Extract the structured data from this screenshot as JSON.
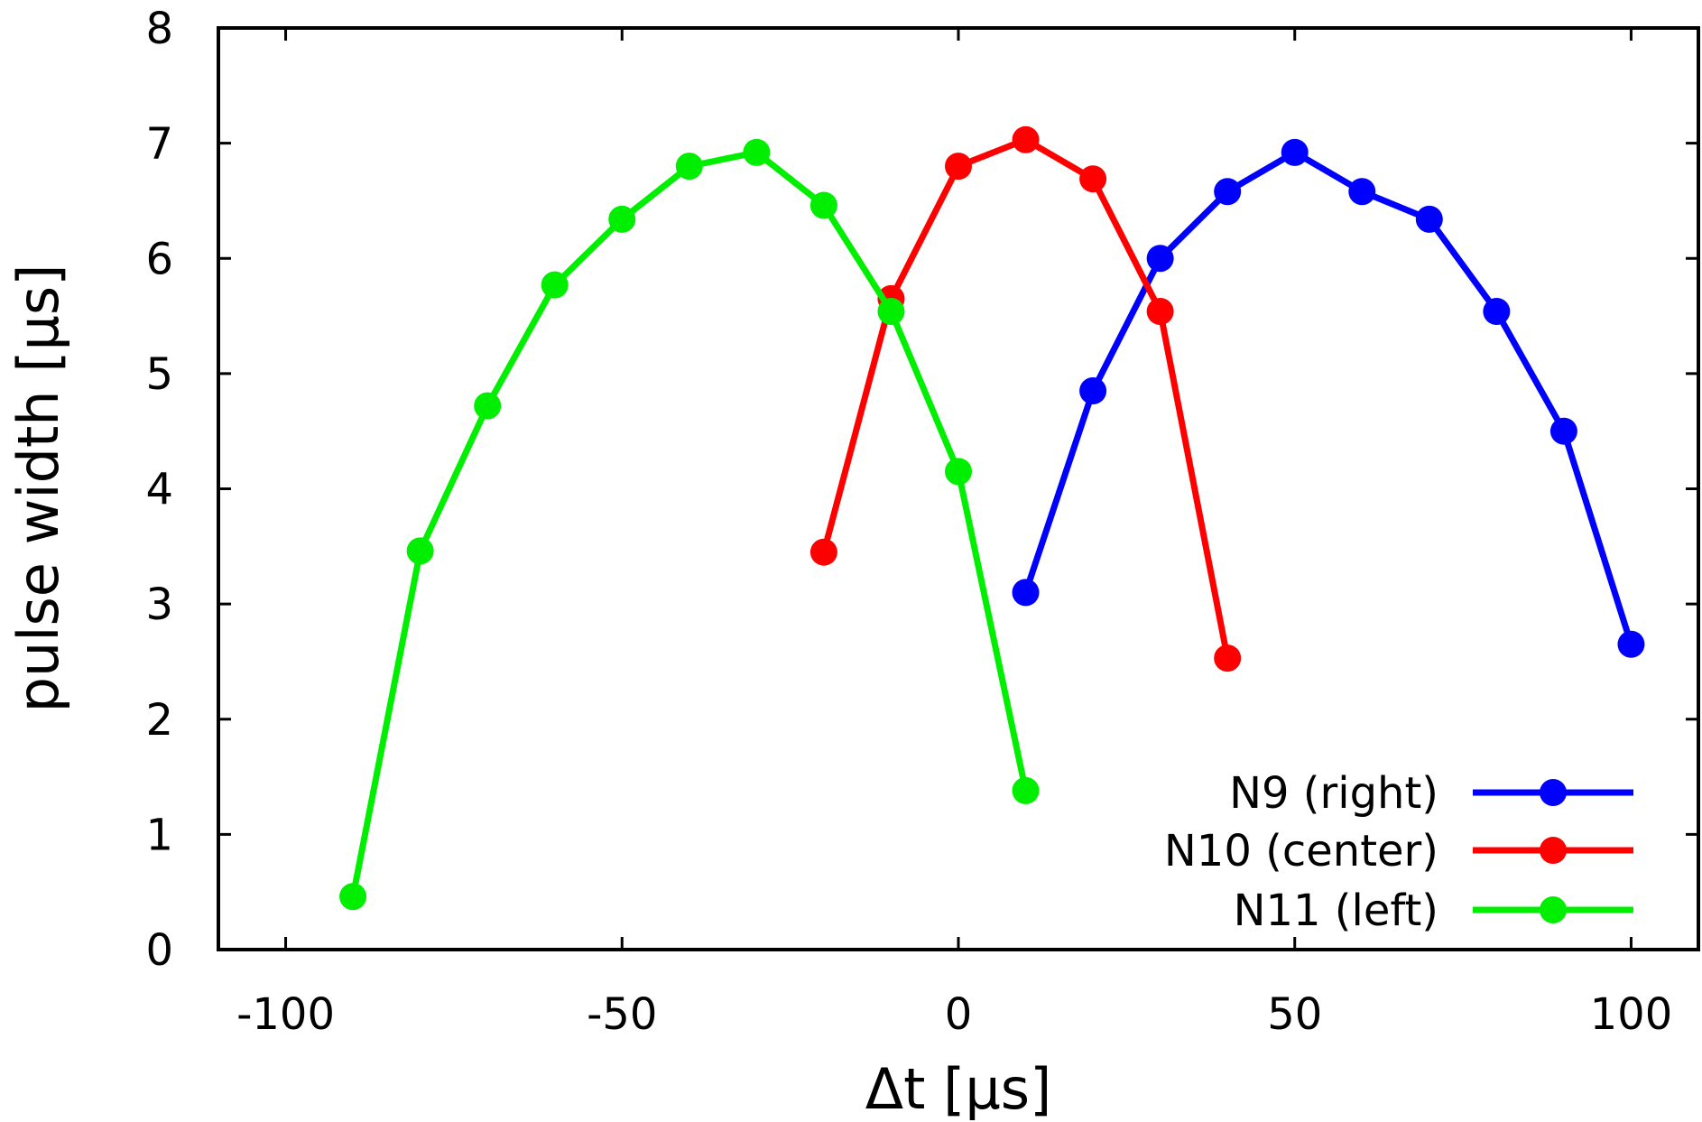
{
  "chart_data": {
    "type": "line",
    "title": "",
    "xlabel": "Δt [μs]",
    "ylabel": "pulse width [μs]",
    "xlim": [
      -110,
      110
    ],
    "ylim": [
      0,
      8
    ],
    "xticks": [
      -100,
      -50,
      0,
      50,
      100
    ],
    "yticks": [
      0,
      1,
      2,
      3,
      4,
      5,
      6,
      7,
      8
    ],
    "grid": false,
    "legend": "bottom-right",
    "series": [
      {
        "name": "N9 (right)",
        "color": "#0000ff",
        "x": [
          10,
          20,
          30,
          40,
          50,
          60,
          70,
          80,
          90,
          100
        ],
        "y": [
          3.1,
          4.85,
          6.0,
          6.58,
          6.92,
          6.58,
          6.34,
          5.54,
          4.5,
          2.65
        ]
      },
      {
        "name": "N10 (center)",
        "color": "#ff0000",
        "x": [
          -20,
          -10,
          0,
          10,
          20,
          30,
          40
        ],
        "y": [
          3.45,
          5.65,
          6.8,
          7.03,
          6.69,
          5.54,
          2.53
        ]
      },
      {
        "name": "N11 (left)",
        "color": "#00ee00",
        "x": [
          -90,
          -80,
          -70,
          -60,
          -50,
          -40,
          -30,
          -20,
          -10,
          0,
          10
        ],
        "y": [
          0.46,
          3.46,
          4.72,
          5.77,
          6.34,
          6.8,
          6.92,
          6.46,
          5.54,
          4.15,
          1.38
        ]
      }
    ]
  }
}
